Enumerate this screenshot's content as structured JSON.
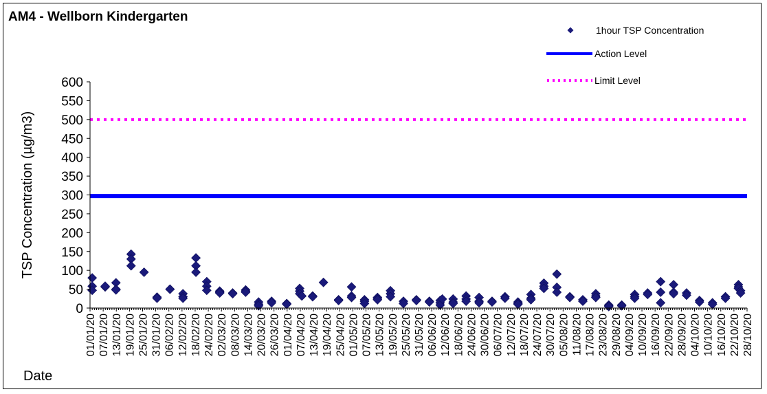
{
  "chart_data": {
    "type": "scatter",
    "title": "AM4 - Wellborn Kindergarten",
    "xlabel": "Date",
    "ylabel": "TSP Concentration (µg/m3)",
    "ylim": [
      0,
      600
    ],
    "y_ticks": [
      0,
      50,
      100,
      150,
      200,
      250,
      300,
      350,
      400,
      450,
      500,
      550,
      600
    ],
    "x_date_range": [
      "01/01/20",
      "31/10/20"
    ],
    "x_tick_labels": [
      "01/01/20",
      "07/01/20",
      "13/01/20",
      "19/01/20",
      "25/01/20",
      "31/01/20",
      "06/02/20",
      "12/02/20",
      "18/02/20",
      "24/02/20",
      "02/03/20",
      "08/03/20",
      "14/03/20",
      "20/03/20",
      "26/03/20",
      "01/04/20",
      "07/04/20",
      "13/04/20",
      "19/04/20",
      "25/04/20",
      "01/05/20",
      "07/05/20",
      "13/05/20",
      "19/05/20",
      "25/05/20",
      "31/05/20",
      "06/06/20",
      "12/06/20",
      "18/06/20",
      "24/06/20",
      "30/06/20",
      "06/07/20",
      "12/07/20",
      "18/07/20",
      "24/07/20",
      "30/07/20",
      "05/08/20",
      "11/08/20",
      "17/08/20",
      "23/08/20",
      "29/08/20",
      "04/09/20",
      "10/09/20",
      "16/09/20",
      "22/09/20",
      "28/09/20",
      "04/10/20",
      "10/10/20",
      "16/10/20",
      "22/10/20",
      "28/10/20"
    ],
    "legend_position": "top-right",
    "lines": [
      {
        "name": "Action Level",
        "value": 297,
        "color": "#0000FF",
        "style": "solid"
      },
      {
        "name": "Limit Level",
        "value": 500,
        "color": "#FF00FF",
        "style": "dotted"
      }
    ],
    "series": [
      {
        "name": "1hour TSP Concentration",
        "color": "#1A1A7A",
        "marker": "diamond",
        "points": [
          {
            "x": "02/01/20",
            "y": 80
          },
          {
            "x": "02/01/20",
            "y": 58
          },
          {
            "x": "02/01/20",
            "y": 47
          },
          {
            "x": "08/01/20",
            "y": 56
          },
          {
            "x": "08/01/20",
            "y": 58
          },
          {
            "x": "13/01/20",
            "y": 67
          },
          {
            "x": "13/01/20",
            "y": 50
          },
          {
            "x": "13/01/20",
            "y": 48
          },
          {
            "x": "20/01/20",
            "y": 143
          },
          {
            "x": "20/01/20",
            "y": 130
          },
          {
            "x": "20/01/20",
            "y": 112
          },
          {
            "x": "26/01/20",
            "y": 95
          },
          {
            "x": "01/02/20",
            "y": 29
          },
          {
            "x": "01/02/20",
            "y": 26
          },
          {
            "x": "07/02/20",
            "y": 50
          },
          {
            "x": "07/02/20",
            "y": 50
          },
          {
            "x": "13/02/20",
            "y": 38
          },
          {
            "x": "13/02/20",
            "y": 30
          },
          {
            "x": "13/02/20",
            "y": 26
          },
          {
            "x": "19/02/20",
            "y": 133
          },
          {
            "x": "19/02/20",
            "y": 112
          },
          {
            "x": "19/02/20",
            "y": 95
          },
          {
            "x": "24/02/20",
            "y": 70
          },
          {
            "x": "24/02/20",
            "y": 58
          },
          {
            "x": "24/02/20",
            "y": 47
          },
          {
            "x": "01/03/20",
            "y": 45
          },
          {
            "x": "01/03/20",
            "y": 42
          },
          {
            "x": "01/03/20",
            "y": 40
          },
          {
            "x": "07/03/20",
            "y": 40
          },
          {
            "x": "07/03/20",
            "y": 38
          },
          {
            "x": "13/03/20",
            "y": 48
          },
          {
            "x": "13/03/20",
            "y": 45
          },
          {
            "x": "13/03/20",
            "y": 42
          },
          {
            "x": "19/03/20",
            "y": 16
          },
          {
            "x": "19/03/20",
            "y": 10
          },
          {
            "x": "19/03/20",
            "y": 6
          },
          {
            "x": "25/03/20",
            "y": 18
          },
          {
            "x": "25/03/20",
            "y": 14
          },
          {
            "x": "01/04/20",
            "y": 12
          },
          {
            "x": "01/04/20",
            "y": 10
          },
          {
            "x": "07/04/20",
            "y": 52
          },
          {
            "x": "07/04/20",
            "y": 45
          },
          {
            "x": "07/04/20",
            "y": 38
          },
          {
            "x": "08/04/20",
            "y": 32
          },
          {
            "x": "13/04/20",
            "y": 32
          },
          {
            "x": "13/04/20",
            "y": 30
          },
          {
            "x": "18/04/20",
            "y": 68
          },
          {
            "x": "25/04/20",
            "y": 22
          },
          {
            "x": "25/04/20",
            "y": 20
          },
          {
            "x": "01/05/20",
            "y": 56
          },
          {
            "x": "01/05/20",
            "y": 32
          },
          {
            "x": "01/05/20",
            "y": 28
          },
          {
            "x": "07/05/20",
            "y": 22
          },
          {
            "x": "07/05/20",
            "y": 18
          },
          {
            "x": "07/05/20",
            "y": 12
          },
          {
            "x": "13/05/20",
            "y": 28
          },
          {
            "x": "13/05/20",
            "y": 24
          },
          {
            "x": "13/05/20",
            "y": 22
          },
          {
            "x": "19/05/20",
            "y": 46
          },
          {
            "x": "19/05/20",
            "y": 38
          },
          {
            "x": "19/05/20",
            "y": 30
          },
          {
            "x": "25/05/20",
            "y": 18
          },
          {
            "x": "25/05/20",
            "y": 12
          },
          {
            "x": "31/05/20",
            "y": 22
          },
          {
            "x": "31/05/20",
            "y": 20
          },
          {
            "x": "06/06/20",
            "y": 18
          },
          {
            "x": "06/06/20",
            "y": 16
          },
          {
            "x": "11/06/20",
            "y": 20
          },
          {
            "x": "11/06/20",
            "y": 14
          },
          {
            "x": "11/06/20",
            "y": 8
          },
          {
            "x": "12/06/20",
            "y": 24
          },
          {
            "x": "17/06/20",
            "y": 24
          },
          {
            "x": "17/06/20",
            "y": 16
          },
          {
            "x": "17/06/20",
            "y": 12
          },
          {
            "x": "23/06/20",
            "y": 32
          },
          {
            "x": "23/06/20",
            "y": 24
          },
          {
            "x": "23/06/20",
            "y": 18
          },
          {
            "x": "29/06/20",
            "y": 28
          },
          {
            "x": "29/06/20",
            "y": 18
          },
          {
            "x": "29/06/20",
            "y": 14
          },
          {
            "x": "05/07/20",
            "y": 18
          },
          {
            "x": "05/07/20",
            "y": 16
          },
          {
            "x": "11/07/20",
            "y": 30
          },
          {
            "x": "11/07/20",
            "y": 26
          },
          {
            "x": "17/07/20",
            "y": 16
          },
          {
            "x": "17/07/20",
            "y": 12
          },
          {
            "x": "17/07/20",
            "y": 10
          },
          {
            "x": "23/07/20",
            "y": 36
          },
          {
            "x": "23/07/20",
            "y": 26
          },
          {
            "x": "23/07/20",
            "y": 22
          },
          {
            "x": "29/07/20",
            "y": 66
          },
          {
            "x": "29/07/20",
            "y": 58
          },
          {
            "x": "29/07/20",
            "y": 52
          },
          {
            "x": "04/08/20",
            "y": 90
          },
          {
            "x": "04/08/20",
            "y": 55
          },
          {
            "x": "04/08/20",
            "y": 42
          },
          {
            "x": "10/08/20",
            "y": 30
          },
          {
            "x": "10/08/20",
            "y": 28
          },
          {
            "x": "16/08/20",
            "y": 22
          },
          {
            "x": "16/08/20",
            "y": 18
          },
          {
            "x": "22/08/20",
            "y": 38
          },
          {
            "x": "22/08/20",
            "y": 32
          },
          {
            "x": "22/08/20",
            "y": 28
          },
          {
            "x": "28/08/20",
            "y": 8
          },
          {
            "x": "28/08/20",
            "y": 6
          },
          {
            "x": "28/08/20",
            "y": 4
          },
          {
            "x": "03/09/20",
            "y": 8
          },
          {
            "x": "03/09/20",
            "y": 6
          },
          {
            "x": "09/09/20",
            "y": 36
          },
          {
            "x": "09/09/20",
            "y": 30
          },
          {
            "x": "09/09/20",
            "y": 26
          },
          {
            "x": "15/09/20",
            "y": 40
          },
          {
            "x": "15/09/20",
            "y": 36
          },
          {
            "x": "21/09/20",
            "y": 70
          },
          {
            "x": "21/09/20",
            "y": 42
          },
          {
            "x": "21/09/20",
            "y": 14
          },
          {
            "x": "27/09/20",
            "y": 62
          },
          {
            "x": "27/09/20",
            "y": 42
          },
          {
            "x": "27/09/20",
            "y": 38
          },
          {
            "x": "03/10/20",
            "y": 40
          },
          {
            "x": "03/10/20",
            "y": 34
          },
          {
            "x": "09/10/20",
            "y": 20
          },
          {
            "x": "09/10/20",
            "y": 16
          },
          {
            "x": "15/10/20",
            "y": 14
          },
          {
            "x": "15/10/20",
            "y": 10
          },
          {
            "x": "21/10/20",
            "y": 30
          },
          {
            "x": "21/10/20",
            "y": 26
          },
          {
            "x": "27/10/20",
            "y": 62
          },
          {
            "x": "27/10/20",
            "y": 56
          },
          {
            "x": "27/10/20",
            "y": 52
          },
          {
            "x": "28/10/20",
            "y": 46
          },
          {
            "x": "28/10/20",
            "y": 40
          }
        ]
      }
    ]
  }
}
